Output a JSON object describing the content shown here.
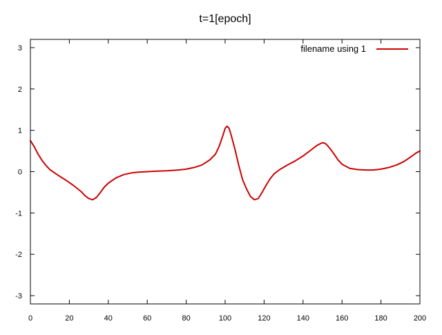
{
  "chart_data": {
    "type": "line",
    "title": "t=1[epoch]",
    "xlabel": "",
    "ylabel": "",
    "xlim": [
      0,
      200
    ],
    "ylim": [
      -3.2,
      3.2
    ],
    "xticks": [
      0,
      20,
      40,
      60,
      80,
      100,
      120,
      140,
      160,
      180,
      200
    ],
    "yticks": [
      -3,
      -2,
      -1,
      0,
      1,
      2,
      3
    ],
    "grid": false,
    "legend_position": "top-right",
    "series": [
      {
        "name": "filename using 1",
        "color": "#cc0000",
        "x": [
          0,
          2,
          4,
          6,
          8,
          10,
          14,
          18,
          22,
          26,
          28,
          30,
          32,
          34,
          36,
          38,
          40,
          44,
          48,
          52,
          56,
          60,
          64,
          70,
          76,
          80,
          84,
          88,
          92,
          95,
          97,
          99,
          100,
          101,
          102,
          103,
          105,
          107,
          109,
          111,
          113,
          115,
          117,
          119,
          121,
          123,
          125,
          128,
          132,
          136,
          140,
          144,
          147,
          149,
          150,
          151,
          152,
          154,
          156,
          158,
          160,
          164,
          168,
          172,
          176,
          180,
          184,
          188,
          192,
          196,
          198,
          200
        ],
        "y": [
          0.75,
          0.6,
          0.42,
          0.27,
          0.15,
          0.05,
          -0.08,
          -0.2,
          -0.33,
          -0.48,
          -0.58,
          -0.65,
          -0.68,
          -0.62,
          -0.5,
          -0.37,
          -0.28,
          -0.15,
          -0.07,
          -0.03,
          -0.01,
          0.0,
          0.01,
          0.02,
          0.04,
          0.06,
          0.1,
          0.16,
          0.28,
          0.42,
          0.62,
          0.9,
          1.05,
          1.1,
          1.05,
          0.9,
          0.55,
          0.15,
          -0.2,
          -0.42,
          -0.6,
          -0.68,
          -0.65,
          -0.5,
          -0.33,
          -0.18,
          -0.06,
          0.05,
          0.16,
          0.26,
          0.38,
          0.52,
          0.63,
          0.68,
          0.7,
          0.69,
          0.66,
          0.55,
          0.42,
          0.28,
          0.18,
          0.08,
          0.05,
          0.04,
          0.04,
          0.06,
          0.1,
          0.16,
          0.25,
          0.38,
          0.45,
          0.5
        ]
      }
    ]
  }
}
